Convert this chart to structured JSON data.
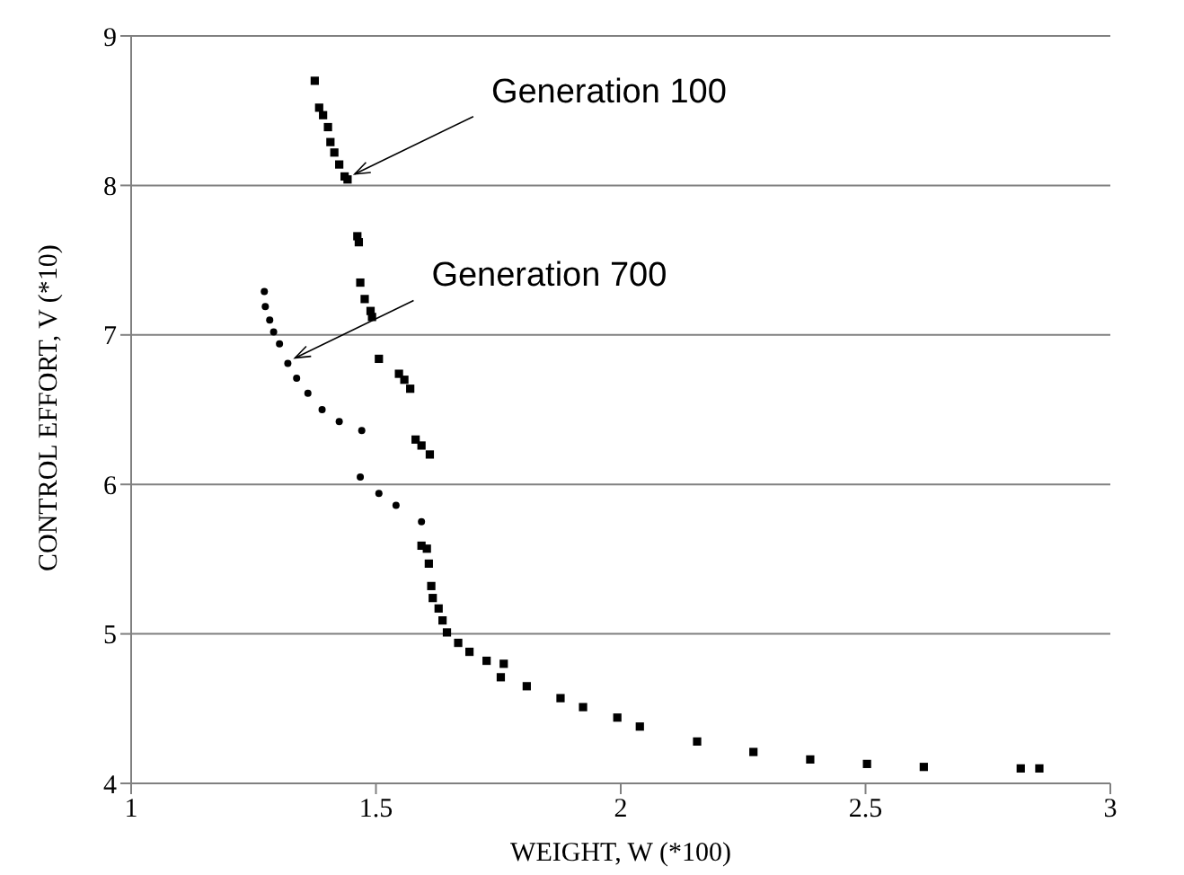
{
  "chart_data": {
    "type": "scatter",
    "xlabel": "WEIGHT, W (*100)",
    "ylabel": "CONTROL EFFORT, V (*10)",
    "xlim": [
      1,
      3
    ],
    "xticks": [
      1,
      1.5,
      2,
      2.5,
      3
    ],
    "ylim": [
      4,
      9
    ],
    "yticks": [
      4,
      5,
      6,
      7,
      8,
      9
    ],
    "grid": "y",
    "annotations": [
      {
        "text": "Generation 100",
        "x": 1.442,
        "y": 8.04
      },
      {
        "text": "Generation 700",
        "x": 1.32,
        "y": 6.81
      }
    ],
    "series": [
      {
        "color": "#000000",
        "marker": "square",
        "x": [
          1.375,
          1.384,
          1.392,
          1.402,
          1.407,
          1.415,
          1.425,
          1.436,
          1.442,
          1.462,
          1.465,
          1.468,
          1.477,
          1.489,
          1.492,
          1.506,
          1.547,
          1.558,
          1.57,
          1.581,
          1.593,
          1.61,
          1.593,
          1.604,
          1.608,
          1.613,
          1.616,
          1.628,
          1.636,
          1.645,
          1.668,
          1.691,
          1.726,
          1.761,
          1.755,
          1.808,
          1.877,
          1.923,
          1.993,
          2.039,
          2.156,
          2.271,
          2.387,
          2.503,
          2.619,
          2.817,
          2.855
        ],
        "values": [
          8.7,
          8.52,
          8.47,
          8.39,
          8.29,
          8.22,
          8.14,
          8.06,
          8.04,
          7.66,
          7.62,
          7.35,
          7.24,
          7.16,
          7.12,
          6.84,
          6.74,
          6.7,
          6.64,
          6.3,
          6.26,
          6.2,
          5.59,
          5.57,
          5.47,
          5.32,
          5.24,
          5.17,
          5.09,
          5.01,
          4.94,
          4.88,
          4.82,
          4.8,
          4.71,
          4.65,
          4.57,
          4.51,
          4.44,
          4.38,
          4.28,
          4.21,
          4.16,
          4.13,
          4.11,
          4.1,
          4.1
        ]
      },
      {
        "color": "#000000",
        "marker": "circle",
        "x": [
          1.272,
          1.274,
          1.283,
          1.291,
          1.303,
          1.32,
          1.338,
          1.361,
          1.39,
          1.425,
          1.471,
          1.468,
          1.506,
          1.541,
          1.593
        ],
        "values": [
          7.29,
          7.19,
          7.1,
          7.02,
          6.94,
          6.81,
          6.71,
          6.61,
          6.5,
          6.42,
          6.36,
          6.05,
          5.94,
          5.86,
          5.75
        ]
      }
    ]
  }
}
